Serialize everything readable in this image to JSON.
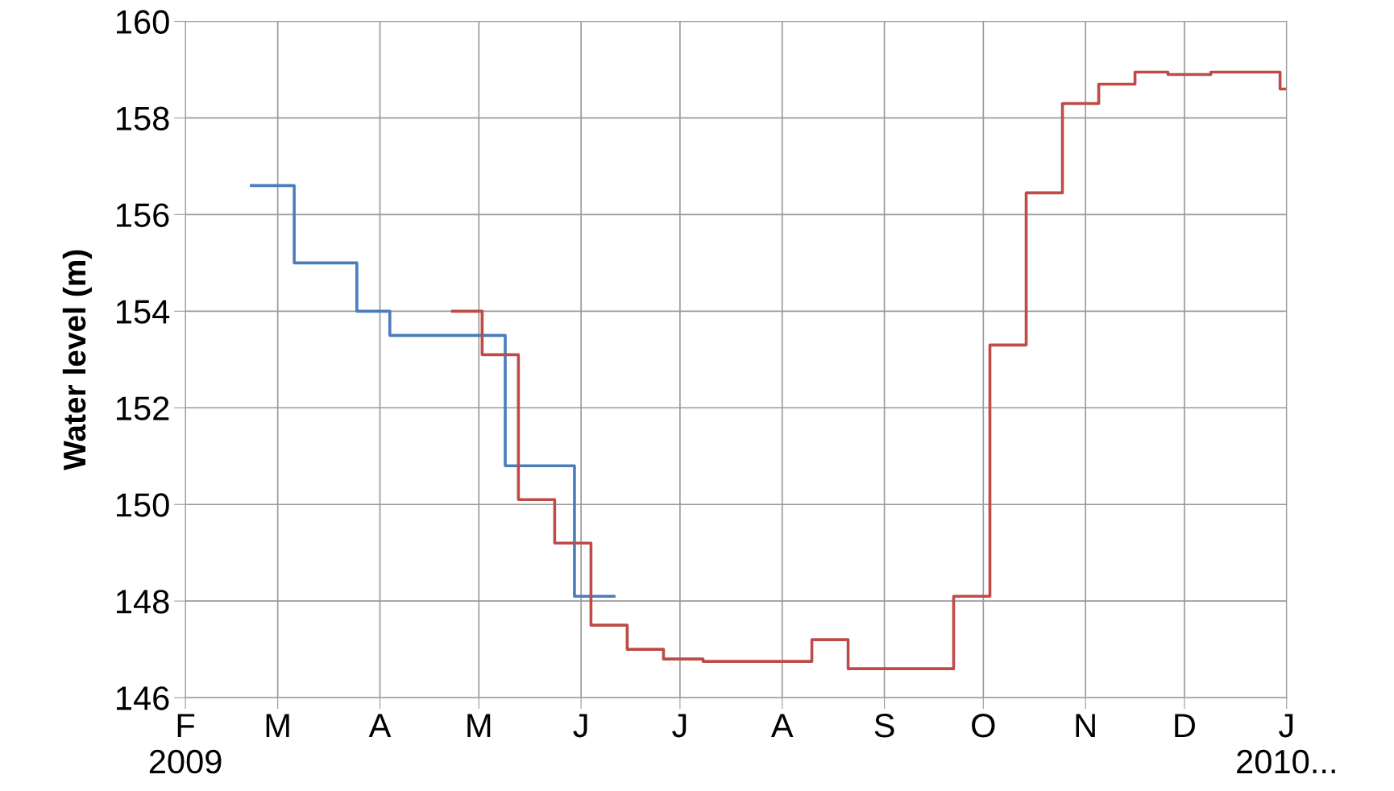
{
  "chart_data": {
    "type": "step",
    "ylabel": "Water level (m)",
    "ylim": [
      146,
      160
    ],
    "yticks": [
      146,
      148,
      150,
      152,
      154,
      156,
      158,
      160
    ],
    "xlim": [
      "2009-02-01",
      "2010-01-01"
    ],
    "xticks": [
      {
        "value": "2009-02-01",
        "label": "F\n2009"
      },
      {
        "value": "2009-03-01",
        "label": "M"
      },
      {
        "value": "2009-04-01",
        "label": "A"
      },
      {
        "value": "2009-05-01",
        "label": "M"
      },
      {
        "value": "2009-06-01",
        "label": "J"
      },
      {
        "value": "2009-07-01",
        "label": "J"
      },
      {
        "value": "2009-08-01",
        "label": "A"
      },
      {
        "value": "2009-09-01",
        "label": "S"
      },
      {
        "value": "2009-10-01",
        "label": "O"
      },
      {
        "value": "2009-11-01",
        "label": "N"
      },
      {
        "value": "2009-12-01",
        "label": "D"
      },
      {
        "value": "2010-01-01",
        "label": "J\n2010..."
      }
    ],
    "grid": true,
    "line_style": "solid",
    "marker": "none",
    "series": [
      {
        "color": "#4a7ebb",
        "x": [
          "2009-02-21",
          "2009-03-06",
          "2009-03-25",
          "2009-04-04",
          "2009-05-09",
          "2009-05-30",
          "2009-06-11"
        ],
        "values": [
          156.6,
          155.0,
          154.0,
          153.5,
          150.8,
          148.1,
          148.1
        ]
      },
      {
        "color": "#be4b48",
        "x": [
          "2009-04-23",
          "2009-05-02",
          "2009-05-13",
          "2009-05-24",
          "2009-06-04",
          "2009-06-15",
          "2009-06-26",
          "2009-07-08",
          "2009-08-10",
          "2009-08-21",
          "2009-09-22",
          "2009-10-03",
          "2009-10-14",
          "2009-10-25",
          "2009-11-05",
          "2009-11-16",
          "2009-11-26",
          "2009-12-09",
          "2009-12-30",
          "2010-01-01"
        ],
        "values": [
          154.0,
          153.1,
          150.1,
          149.2,
          147.5,
          147.0,
          146.8,
          146.75,
          147.2,
          146.6,
          148.1,
          153.3,
          156.45,
          158.3,
          158.7,
          158.95,
          158.9,
          158.95,
          158.6,
          158.6
        ]
      }
    ]
  }
}
